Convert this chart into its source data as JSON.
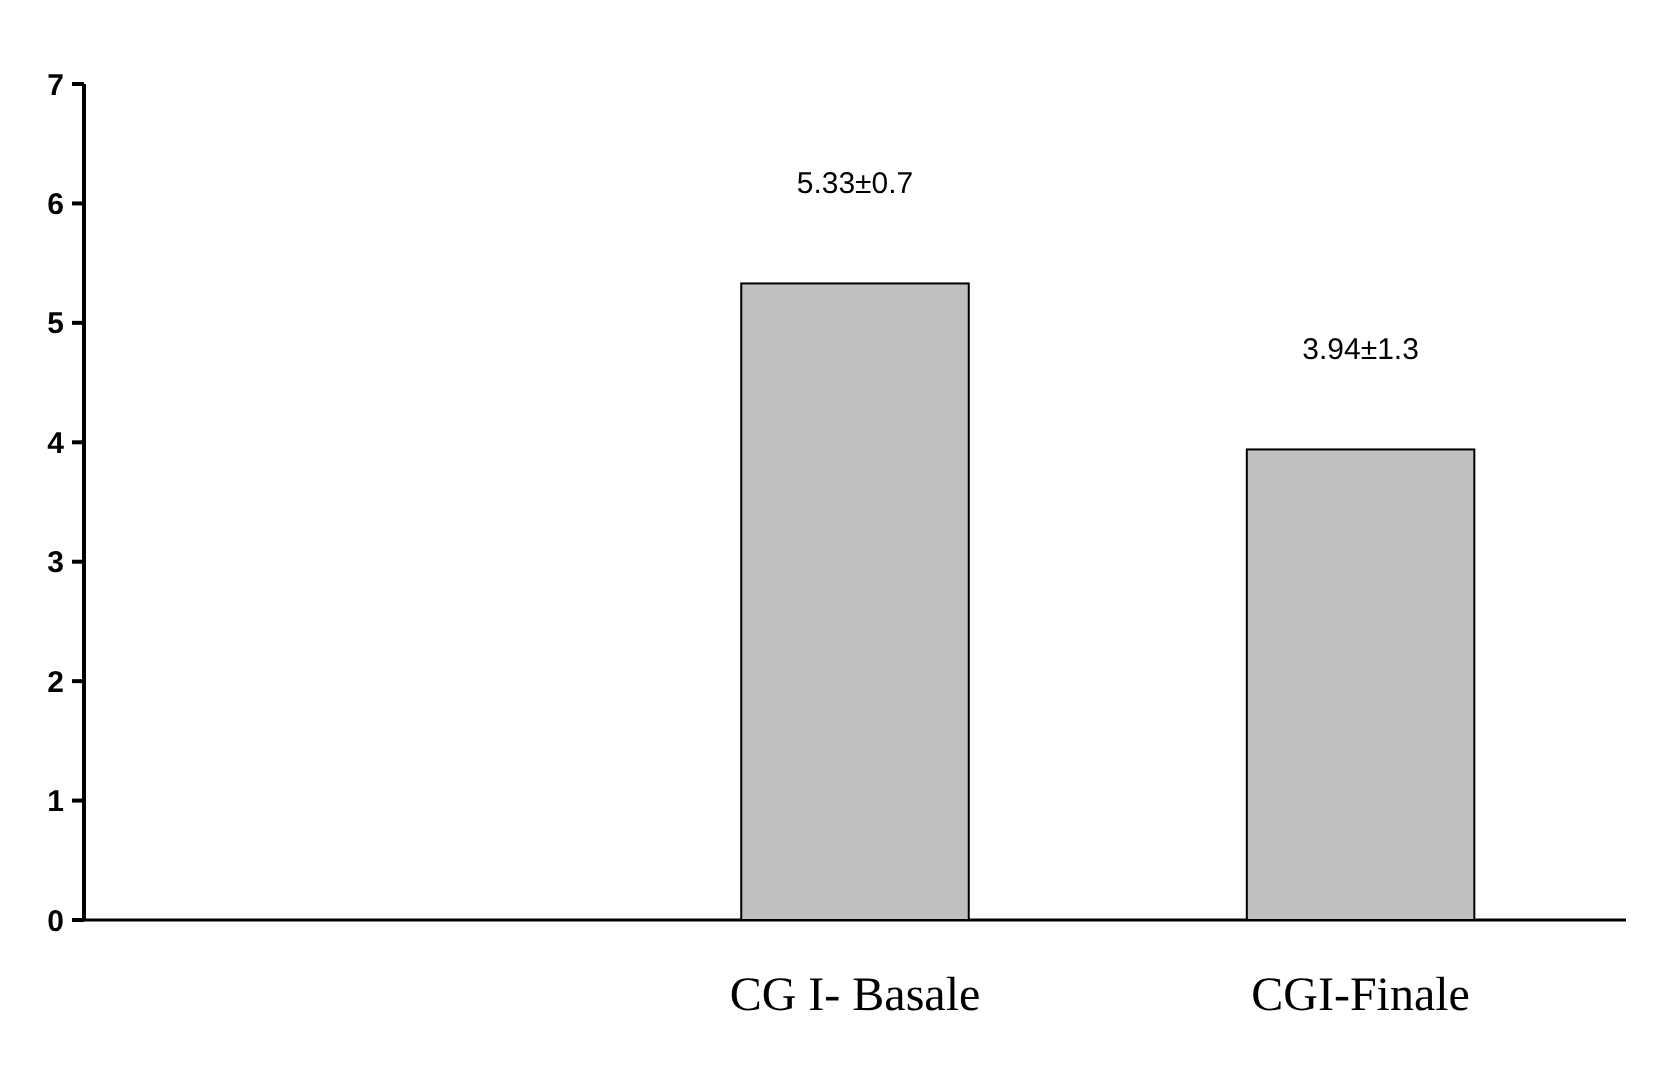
{
  "chart_data": {
    "type": "bar",
    "categories": [
      null,
      "CG I- Basale",
      "CGI-Finale"
    ],
    "values": [
      null,
      5.33,
      3.94
    ],
    "value_labels": [
      null,
      "5.33±0.7",
      "3.94±1.3"
    ],
    "color": "#c0c0c0",
    "ylim": [
      0,
      7
    ],
    "yticks": [
      0,
      1,
      2,
      3,
      4,
      5,
      6,
      7
    ],
    "grid": false
  }
}
